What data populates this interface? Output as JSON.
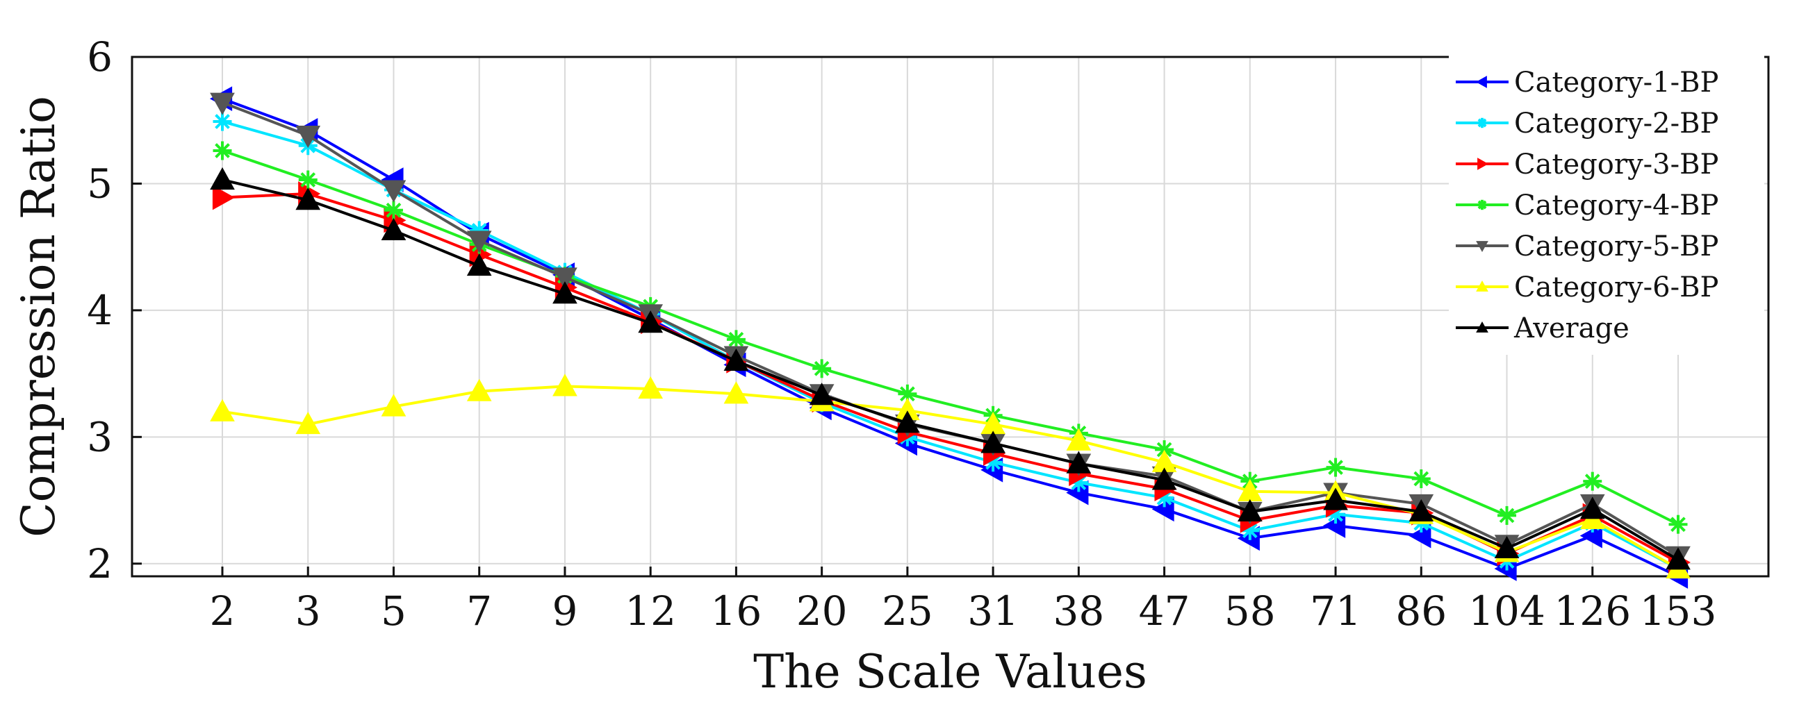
{
  "chart_data": {
    "type": "line",
    "title": "",
    "xlabel": "The Scale Values",
    "ylabel": "Compression Ratio",
    "categories": [
      "2",
      "3",
      "5",
      "7",
      "9",
      "12",
      "16",
      "20",
      "25",
      "31",
      "38",
      "47",
      "58",
      "71",
      "86",
      "104",
      "126",
      "153"
    ],
    "ylim": [
      1.9,
      6
    ],
    "yticks": [
      2,
      3,
      4,
      5,
      6
    ],
    "grid": true,
    "legend_position": "top-right",
    "series": [
      {
        "name": "Category-1-BP",
        "color": "#0000ff",
        "marker": "triangle-left",
        "values": [
          5.67,
          5.42,
          5.03,
          4.6,
          4.28,
          3.93,
          3.57,
          3.23,
          2.95,
          2.74,
          2.56,
          2.43,
          2.2,
          2.3,
          2.22,
          1.96,
          2.22,
          1.9
        ]
      },
      {
        "name": "Category-2-BP",
        "color": "#00e5ff",
        "marker": "star",
        "values": [
          5.49,
          5.3,
          4.95,
          4.63,
          4.3,
          3.97,
          3.6,
          3.27,
          3.0,
          2.8,
          2.64,
          2.52,
          2.26,
          2.39,
          2.32,
          2.02,
          2.32,
          1.96
        ]
      },
      {
        "name": "Category-3-BP",
        "color": "#ff0000",
        "marker": "triangle-right",
        "values": [
          4.89,
          4.92,
          4.71,
          4.44,
          4.18,
          3.91,
          3.6,
          3.29,
          3.04,
          2.87,
          2.71,
          2.59,
          2.34,
          2.46,
          2.4,
          2.08,
          2.38,
          2.01
        ]
      },
      {
        "name": "Category-4-BP",
        "color": "#22ee22",
        "marker": "star",
        "values": [
          5.26,
          5.03,
          4.79,
          4.52,
          4.27,
          4.03,
          3.77,
          3.54,
          3.34,
          3.17,
          3.03,
          2.9,
          2.65,
          2.76,
          2.67,
          2.38,
          2.65,
          2.31
        ]
      },
      {
        "name": "Category-5-BP",
        "color": "#555555",
        "marker": "triangle-down",
        "values": [
          5.64,
          5.38,
          4.95,
          4.55,
          4.26,
          3.97,
          3.64,
          3.34,
          3.1,
          2.95,
          2.79,
          2.69,
          2.41,
          2.56,
          2.47,
          2.15,
          2.47,
          2.06
        ]
      },
      {
        "name": "Category-6-BP",
        "color": "#ffff00",
        "marker": "triangle-up",
        "values": [
          3.2,
          3.1,
          3.24,
          3.36,
          3.4,
          3.38,
          3.34,
          3.28,
          3.21,
          3.1,
          2.97,
          2.8,
          2.57,
          2.56,
          2.39,
          2.09,
          2.35,
          1.96
        ]
      },
      {
        "name": "Average",
        "color": "#000000",
        "marker": "triangle-up",
        "values": [
          5.03,
          4.87,
          4.63,
          4.35,
          4.13,
          3.9,
          3.6,
          3.33,
          3.11,
          2.95,
          2.79,
          2.66,
          2.41,
          2.5,
          2.41,
          2.12,
          2.43,
          2.03
        ]
      }
    ]
  }
}
